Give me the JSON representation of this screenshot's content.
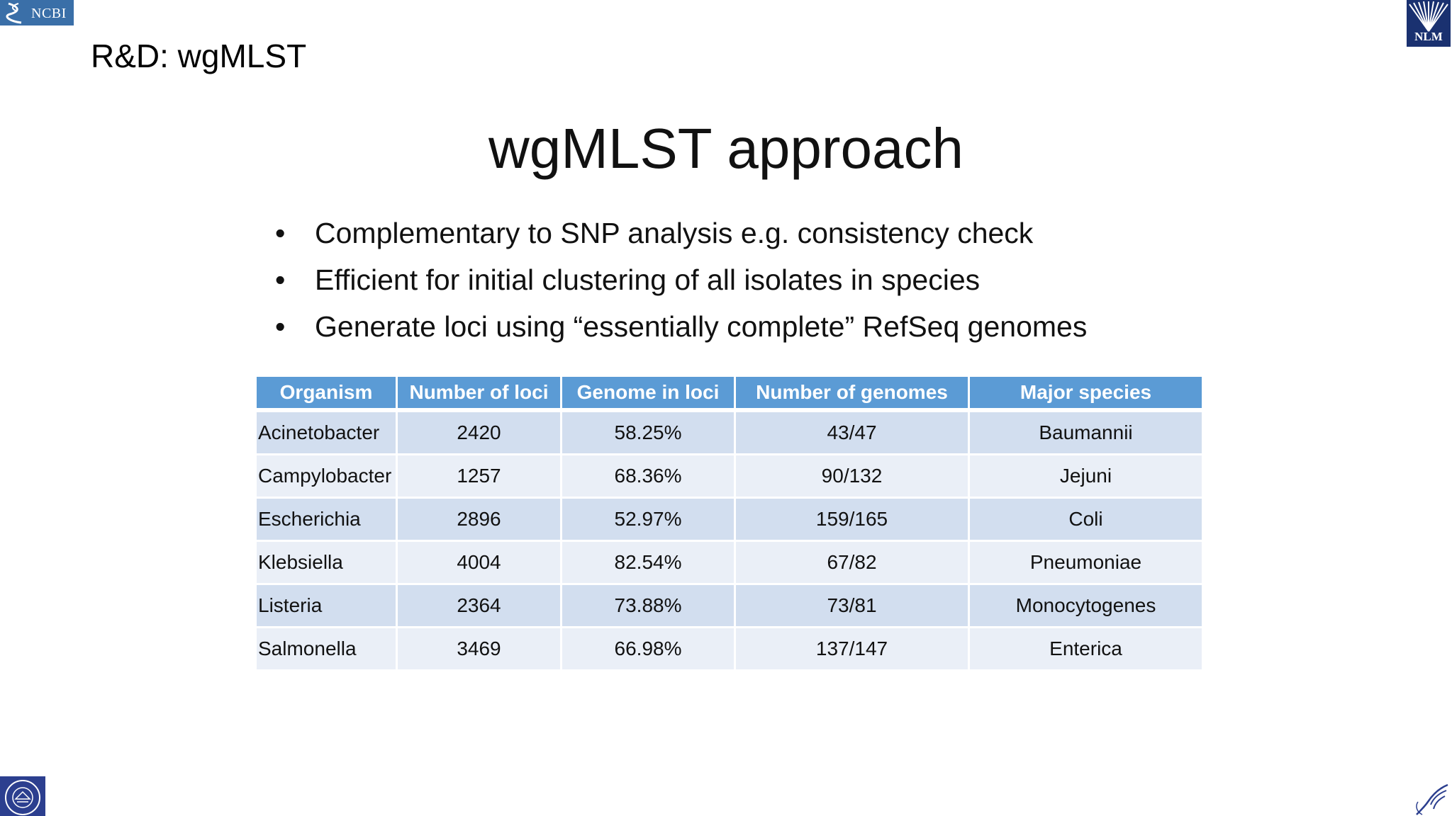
{
  "logos": {
    "ncbi": "NCBI",
    "nlm": "NLM"
  },
  "header": {
    "section": "R&D: wgMLST"
  },
  "slide": {
    "title": "wgMLST approach",
    "bullets": [
      "Complementary to SNP analysis e.g. consistency check",
      "Efficient for initial clustering of all isolates in species",
      "Generate loci using “essentially complete” RefSeq genomes"
    ]
  },
  "table": {
    "headers": [
      "Organism",
      "Number of loci",
      "Genome in loci",
      "Number of genomes",
      "Major species"
    ],
    "rows": [
      [
        "Acinetobacter",
        "2420",
        "58.25%",
        "43/47",
        "Baumannii"
      ],
      [
        "Campylobacter",
        "1257",
        "68.36%",
        "90/132",
        "Jejuni"
      ],
      [
        "Escherichia",
        "2896",
        "52.97%",
        "159/165",
        "Coli"
      ],
      [
        "Klebsiella",
        "4004",
        "82.54%",
        "67/82",
        "Pneumoniae"
      ],
      [
        "Listeria",
        "2364",
        "73.88%",
        "73/81",
        "Monocytogenes"
      ],
      [
        "Salmonella",
        "3469",
        "66.98%",
        "137/147",
        "Enterica"
      ]
    ]
  },
  "colors": {
    "header_bg": "#5b9bd5",
    "row_dark": "#d2deef",
    "row_light": "#eaeff7"
  }
}
